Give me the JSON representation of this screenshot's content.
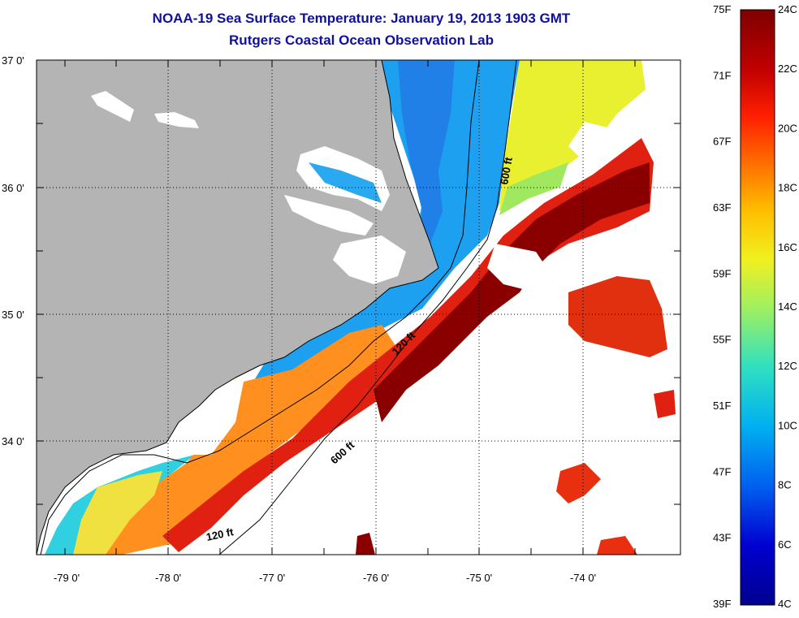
{
  "title": "NOAA-19 Sea Surface Temperature:  January 19, 2013 1903 GMT",
  "subtitle": "Rutgers Coastal Ocean Observation Lab",
  "lat_labels": [
    "37 0'",
    "36 0'",
    "35 0'",
    "34 0'"
  ],
  "lon_labels": [
    "-79 0'",
    "-78 0'",
    "-77 0'",
    "-76 0'",
    "-75 0'",
    "-74 0'"
  ],
  "isobath_labels": [
    "600 ft",
    "120 ft",
    "600 ft",
    "120 ft"
  ],
  "colorbar": {
    "fahrenheit": [
      "75F",
      "71F",
      "67F",
      "63F",
      "59F",
      "55F",
      "51F",
      "47F",
      "43F",
      "39F"
    ],
    "celsius": [
      "24C",
      "22C",
      "20C",
      "18C",
      "16C",
      "14C",
      "12C",
      "10C",
      "8C",
      "6C",
      "4C"
    ],
    "colors": [
      "#7f0000",
      "#c00000",
      "#ff2000",
      "#ff7000",
      "#ffc000",
      "#f0f020",
      "#a0f060",
      "#30e0c0",
      "#00b0f0",
      "#0060f0",
      "#0000d0",
      "#00008f"
    ]
  },
  "colors": {
    "land": "#b4b4b4",
    "cloud": "#ffffff",
    "title": "#1010a0"
  }
}
